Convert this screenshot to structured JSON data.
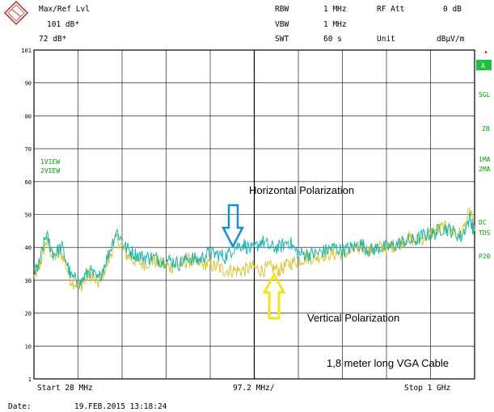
{
  "header": {
    "ref_title": "Max/Ref Lvl",
    "ref_level": "101 dB*",
    "ref_level2": "72 dB*",
    "rbw_label": "RBW",
    "rbw_value": "1 MHz",
    "vbw_label": "VBW",
    "vbw_value": "1 MHz",
    "swt_label": "SWT",
    "swt_value": "60 s",
    "rfatt_label": "RF Att",
    "rfatt_value": "0 dB",
    "unit_label": "Unit",
    "unit_value": "dBµV/m"
  },
  "footer": {
    "start": "Start 28 MHz",
    "span": "97.2 MHz/",
    "stop": "Stop 1 GHz",
    "date_label": "Date:",
    "date_value": "19.FEB.2015  13:18:24"
  },
  "left_labels": {
    "trace1": "1VIEW",
    "trace2": "2VIEW"
  },
  "right_labels": {
    "a": "A",
    "sgl": "SGL",
    "two_b": "2B",
    "ma1": "1MA",
    "ma2": "2MA",
    "dc": "DC",
    "tds": "TDS",
    "p20": "P20",
    "dot": "•"
  },
  "colors": {
    "background": "#ffffff",
    "grid": "#000000",
    "trace_horizontal": "#1fb5b0",
    "trace_vertical": "#d8c63a",
    "arrow_blue": "#1b8ed0",
    "arrow_yellow": "#f0e61a",
    "side_text": "#00a000",
    "a_badge": "#20c040"
  },
  "chart_data": {
    "type": "line",
    "title": "",
    "xlabel": "",
    "ylabel": "",
    "xlim": [
      28,
      1000
    ],
    "ylim": [
      0,
      100
    ],
    "yticks": [
      101,
      90,
      80,
      70,
      60,
      50,
      40,
      30,
      20,
      10,
      1
    ],
    "grid": true,
    "annotations": [
      "Horizontal Polarization",
      "Vertical Polarization",
      "1,8 meter long VGA Cable"
    ],
    "series": [
      {
        "color": "#1fb5b0",
        "x": [
          28,
          40,
          55,
          70,
          90,
          110,
          130,
          150,
          170,
          190,
          210,
          230,
          250,
          270,
          290,
          310,
          330,
          350,
          370,
          390,
          410,
          430,
          450,
          470,
          490,
          510,
          530,
          550,
          570,
          590,
          610,
          630,
          650,
          670,
          690,
          710,
          730,
          750,
          770,
          790,
          810,
          830,
          850,
          870,
          890,
          910,
          930,
          950,
          970,
          990,
          1000
        ],
        "values": [
          32,
          35,
          44,
          38,
          40,
          31,
          29,
          33,
          30,
          37,
          45,
          40,
          38,
          37,
          37,
          36,
          36,
          35,
          37,
          36,
          38,
          38,
          37,
          40,
          41,
          39,
          42,
          40,
          40,
          42,
          38,
          38,
          38,
          39,
          40,
          39,
          40,
          41,
          39,
          40,
          40,
          41,
          42,
          42,
          44,
          44,
          46,
          45,
          43,
          49,
          44
        ]
      },
      {
        "color": "#d8c63a",
        "x": [
          28,
          40,
          55,
          70,
          90,
          110,
          130,
          150,
          170,
          190,
          210,
          230,
          250,
          270,
          290,
          310,
          330,
          350,
          370,
          390,
          410,
          430,
          450,
          470,
          490,
          510,
          530,
          550,
          570,
          590,
          610,
          630,
          650,
          670,
          690,
          710,
          730,
          750,
          770,
          790,
          810,
          830,
          850,
          870,
          890,
          910,
          930,
          950,
          970,
          990,
          1000
        ],
        "values": [
          31,
          34,
          42,
          37,
          38,
          30,
          28,
          32,
          29,
          35,
          43,
          38,
          36,
          35,
          36,
          35,
          34,
          35,
          36,
          35,
          35,
          34,
          33,
          33,
          33,
          34,
          33,
          34,
          33,
          35,
          36,
          37,
          37,
          38,
          38,
          38,
          39,
          40,
          39,
          40,
          40,
          41,
          43,
          42,
          43,
          45,
          46,
          45,
          44,
          51,
          45
        ]
      }
    ]
  }
}
